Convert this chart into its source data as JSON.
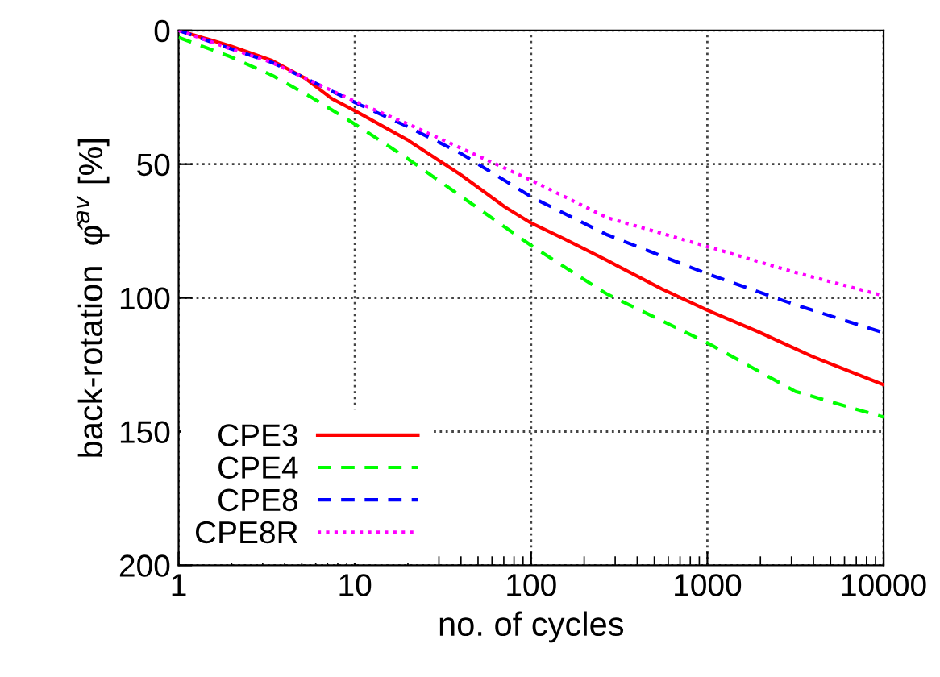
{
  "chart_data": {
    "type": "line",
    "xlabel": "no. of cycles",
    "ylabel": "back-rotation  φ̂$^{av}$ [%]",
    "log": "x",
    "xlim": [
      1,
      10000
    ],
    "xticks": [
      1,
      10,
      100,
      1000,
      10000
    ],
    "ylim": [
      200,
      0
    ],
    "yticks": [
      0,
      50,
      100,
      150,
      200
    ],
    "grid": true,
    "legend": "bottom left",
    "series": [
      {
        "name": "CPE3",
        "color": "#ff0000",
        "line_style": "solid",
        "x": [
          1,
          1.95,
          3.4,
          5.2,
          7.4,
          10,
          20,
          40,
          71,
          100,
          155,
          270,
          550,
          1000,
          1950,
          3900,
          10000
        ],
        "values": [
          0,
          5.7,
          11.3,
          17.8,
          25.5,
          30,
          41,
          54,
          66,
          72,
          78,
          86,
          96.6,
          104.6,
          112.7,
          121.8,
          132.5
        ]
      },
      {
        "name": "CPE4",
        "color": "#00ff00",
        "line_style": "dashed",
        "x": [
          1,
          1.95,
          3.4,
          5.6,
          10,
          20,
          40,
          100,
          270,
          1000,
          3160,
          10000
        ],
        "values": [
          2.6,
          9.7,
          16.8,
          24.8,
          35,
          48,
          62,
          80.4,
          98.6,
          116.8,
          135,
          144.6
        ]
      },
      {
        "name": "CPE8",
        "color": "#0000ff",
        "line_style": "dashed",
        "x": [
          1,
          1.95,
          3.4,
          5.6,
          10,
          20,
          40,
          100,
          270,
          1000,
          3160,
          10000
        ],
        "values": [
          0,
          6.7,
          12,
          18.8,
          26.9,
          36,
          46,
          62.2,
          76.4,
          91,
          102.6,
          113
        ]
      },
      {
        "name": "CPE8R",
        "color": "#ff00ff",
        "line_style": "dotted",
        "x": [
          1,
          1.95,
          3.4,
          5.6,
          10,
          20,
          40,
          100,
          270,
          1000,
          3160,
          10000
        ],
        "values": [
          0,
          6.7,
          12,
          18.8,
          26.5,
          35,
          44,
          56,
          70,
          80.8,
          90.5,
          99.2
        ]
      }
    ]
  }
}
